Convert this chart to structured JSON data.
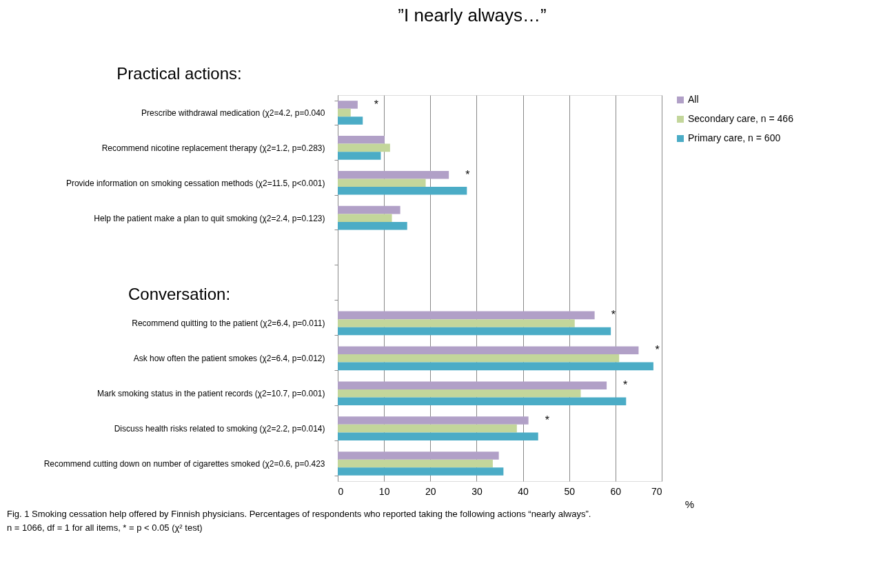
{
  "chart_data": {
    "type": "bar",
    "orientation": "horizontal",
    "title": "”I nearly always…”",
    "xlabel": "%",
    "categories": [
      "Prescribe withdrawal medication (χ2=4.2, p=0.040",
      "Recommend nicotine replacement therapy  (χ2=1.2, p=0.283)",
      "Provide information on smoking cessation methods (χ2=11.5, p<0.001)",
      "Help the patient make a plan to quit smoking (χ2=2.4, p=0.123)",
      null,
      null,
      "Recommend quitting to the patient (χ2=6.4, p=0.011)",
      "Ask how often the patient smokes (χ2=6.4, p=0.012)",
      "Mark smoking status in the patient records (χ2=10.7, p=0.001)",
      "Discuss health risks related to smoking (χ2=2.2, p=0.014)",
      "Recommend cutting down on number of cigarettes smoked (χ2=0.6, p=0.423"
    ],
    "series": [
      {
        "name": "All",
        "color": "#b1a0c7",
        "values": [
          4.3,
          10.1,
          24.0,
          13.5,
          null,
          null,
          55.5,
          65.0,
          58.1,
          41.2,
          34.8
        ],
        "value_labels": [
          "*",
          null,
          "*",
          null,
          null,
          null,
          "*",
          "*",
          "*",
          "*",
          null
        ]
      },
      {
        "name": "Secondary care, n = 466",
        "color": "#c3d69b",
        "values": [
          2.8,
          11.3,
          19.0,
          11.7,
          null,
          null,
          51.2,
          60.8,
          52.5,
          38.7,
          33.5
        ]
      },
      {
        "name": "Primary care, n = 600",
        "color": "#4bacc6",
        "values": [
          5.4,
          9.3,
          27.9,
          15.0,
          null,
          null,
          59.0,
          68.2,
          62.3,
          43.3,
          35.8
        ]
      }
    ],
    "xlim": [
      0,
      70
    ],
    "xticks": [
      0,
      10,
      20,
      30,
      40,
      50,
      60,
      70
    ],
    "grid": "x",
    "legend": "right",
    "annotations": [
      "Practical actions:",
      "Conversation:",
      "Fig. 1 Smoking cessation help offered by Finnish physicians. Percentages of respondents who reported taking the following actions “nearly always”.",
      "n = 1066, df = 1 for all items, * = p < 0.05 (χ² test)"
    ]
  }
}
